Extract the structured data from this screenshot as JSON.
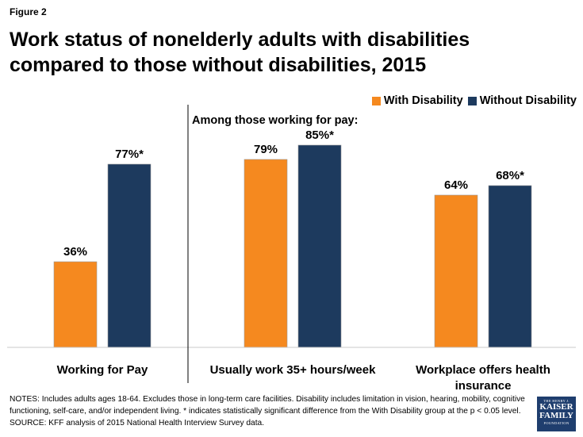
{
  "figure_label": "Figure 2",
  "title_lines": [
    "Work status of nonelderly adults with disabilities",
    "compared to those without disabilities, 2015"
  ],
  "subheading": "Among those working for pay:",
  "notes": "NOTES: Includes adults ages 18-64. Excludes those in long-term care facilities. Disability includes limitation in vision, hearing, mobility, cognitive functioning, self-care, and/or independent living. * indicates statistically significant difference from the With Disability group at the p < 0.05 level. SOURCE:  KFF analysis of 2015 National Health Interview Survey data.",
  "logo": {
    "line1": "THE HENRY J.",
    "line2": "KAISER",
    "line3": "FAMILY",
    "line4": "FOUNDATION"
  },
  "colors": {
    "with_disability": "#f5891f",
    "without_disability": "#1d3a5e"
  },
  "chart_data": {
    "type": "bar",
    "categories": [
      "Working for Pay",
      "Usually work 35+ hours/week",
      "Workplace offers health insurance"
    ],
    "category_label_lines": [
      [
        "Working for Pay"
      ],
      [
        "Usually work 35+ hours/week"
      ],
      [
        "Workplace offers health",
        "insurance"
      ]
    ],
    "series": [
      {
        "name": "With Disability",
        "values": [
          36,
          79,
          64
        ],
        "labels": [
          "36%",
          "79%",
          "64%"
        ]
      },
      {
        "name": "Without Disability",
        "values": [
          77,
          85,
          68
        ],
        "labels": [
          "77%*",
          "85%*",
          "68%*"
        ]
      }
    ],
    "ylim": [
      0,
      100
    ],
    "legend_position": "top-right"
  }
}
